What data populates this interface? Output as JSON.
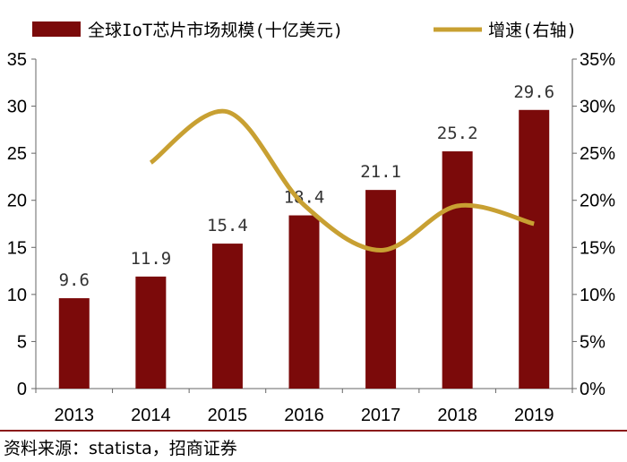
{
  "chart_data": {
    "type": "bar+line",
    "categories": [
      "2013",
      "2014",
      "2015",
      "2016",
      "2017",
      "2018",
      "2019"
    ],
    "series": [
      {
        "name": "全球IoT芯片市场规模(十亿美元)",
        "type": "bar",
        "axis": "left",
        "values": [
          9.6,
          11.9,
          15.4,
          18.4,
          21.1,
          25.2,
          29.6
        ],
        "data_labels": [
          "9.6",
          "11.9",
          "15.4",
          "18.4",
          "21.1",
          "25.2",
          "29.6"
        ],
        "color": "#7b0a0a"
      },
      {
        "name": "增速(右轴)",
        "type": "line",
        "smooth": true,
        "axis": "right",
        "x": [
          "2014",
          "2015",
          "2016",
          "2017",
          "2018",
          "2019"
        ],
        "values": [
          24.0,
          29.4,
          19.5,
          14.7,
          19.4,
          17.5
        ],
        "color": "#c8a032"
      }
    ],
    "y_left": {
      "ticks": [
        "0",
        "5",
        "10",
        "15",
        "20",
        "25",
        "30",
        "35"
      ],
      "range": [
        0,
        35
      ]
    },
    "y_right": {
      "ticks": [
        "0%",
        "5%",
        "10%",
        "15%",
        "20%",
        "25%",
        "30%",
        "35%"
      ],
      "range": [
        0,
        35
      ]
    },
    "legend_position": "top",
    "grid": false
  },
  "source_note": "资料来源：statista，招商证券",
  "colors": {
    "bar": "#7b0a0a",
    "line": "#c8a032",
    "axis": "#666666",
    "bottom_rule": "#8b1a1a"
  }
}
